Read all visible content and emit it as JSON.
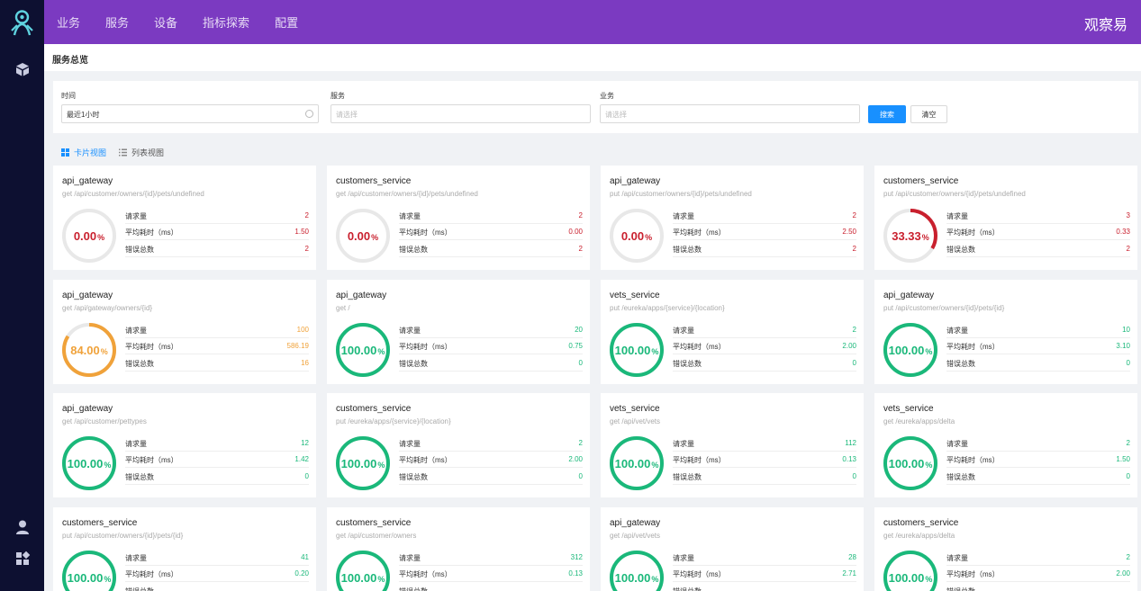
{
  "colors": {
    "topbar": "#7b3ac1",
    "sidebar": "#0d1031",
    "green": "#1ab87a",
    "red": "#c9202e",
    "orange": "#f0a23a",
    "primary": "#1890ff"
  },
  "topbar": {
    "menu": [
      "业务",
      "服务",
      "设备",
      "指标探索",
      "配置"
    ],
    "brand": "观察易"
  },
  "sidebar": {
    "icons": [
      "logo-icon",
      "cube-icon",
      "user-icon",
      "dashboard-icon"
    ]
  },
  "page": {
    "title": "服务总览"
  },
  "filter": {
    "time_label": "时间",
    "time_value": "最近1小时",
    "service_label": "服务",
    "service_placeholder": "请选择",
    "business_label": "业务",
    "business_placeholder": "请选择",
    "search_button": "搜索",
    "clear_button": "清空"
  },
  "view": {
    "card_view": "卡片视图",
    "list_view": "列表视图"
  },
  "metric_labels": {
    "requests": "请求量",
    "avg_latency": "平均耗时（ms）",
    "errors": "错误总数"
  },
  "cards": [
    {
      "service": "api_gateway",
      "endpoint": "get /api/customer/owners/{id}/pets/undefined",
      "percent": "0.00",
      "fraction": 0,
      "status": "red",
      "requests": "2",
      "latency": "1.50",
      "errors": "2"
    },
    {
      "service": "customers_service",
      "endpoint": "get /api/customer/owners/{id}/pets/undefined",
      "percent": "0.00",
      "fraction": 0,
      "status": "red",
      "requests": "2",
      "latency": "0.00",
      "errors": "2"
    },
    {
      "service": "api_gateway",
      "endpoint": "put /api/customer/owners/{id}/pets/undefined",
      "percent": "0.00",
      "fraction": 0,
      "status": "red",
      "requests": "2",
      "latency": "2.50",
      "errors": "2"
    },
    {
      "service": "customers_service",
      "endpoint": "put /api/customer/owners/{id}/pets/undefined",
      "percent": "33.33",
      "fraction": 0.3333,
      "status": "red",
      "requests": "3",
      "latency": "0.33",
      "errors": "2"
    },
    {
      "service": "api_gateway",
      "endpoint": "get /api/gateway/owners/{id}",
      "percent": "84.00",
      "fraction": 0.84,
      "status": "orange",
      "requests": "100",
      "latency": "586.19",
      "errors": "16"
    },
    {
      "service": "api_gateway",
      "endpoint": "get /",
      "percent": "100.00",
      "fraction": 1,
      "status": "green",
      "requests": "20",
      "latency": "0.75",
      "errors": "0"
    },
    {
      "service": "vets_service",
      "endpoint": "put /eureka/apps/{service}/{location}",
      "percent": "100.00",
      "fraction": 1,
      "status": "green",
      "requests": "2",
      "latency": "2.00",
      "errors": "0"
    },
    {
      "service": "api_gateway",
      "endpoint": "put /api/customer/owners/{id}/pets/{id}",
      "percent": "100.00",
      "fraction": 1,
      "status": "green",
      "requests": "10",
      "latency": "3.10",
      "errors": "0"
    },
    {
      "service": "api_gateway",
      "endpoint": "get /api/customer/pettypes",
      "percent": "100.00",
      "fraction": 1,
      "status": "green",
      "requests": "12",
      "latency": "1.42",
      "errors": "0"
    },
    {
      "service": "customers_service",
      "endpoint": "put /eureka/apps/{service}/{location}",
      "percent": "100.00",
      "fraction": 1,
      "status": "green",
      "requests": "2",
      "latency": "2.00",
      "errors": "0"
    },
    {
      "service": "vets_service",
      "endpoint": "get /api/vet/vets",
      "percent": "100.00",
      "fraction": 1,
      "status": "green",
      "requests": "112",
      "latency": "0.13",
      "errors": "0"
    },
    {
      "service": "vets_service",
      "endpoint": "get /eureka/apps/delta",
      "percent": "100.00",
      "fraction": 1,
      "status": "green",
      "requests": "2",
      "latency": "1.50",
      "errors": "0"
    },
    {
      "service": "customers_service",
      "endpoint": "put /api/customer/owners/{id}/pets/{id}",
      "percent": "100.00",
      "fraction": 1,
      "status": "green",
      "requests": "41",
      "latency": "0.20",
      "errors": ""
    },
    {
      "service": "customers_service",
      "endpoint": "get /api/customer/owners",
      "percent": "100.00",
      "fraction": 1,
      "status": "green",
      "requests": "312",
      "latency": "0.13",
      "errors": ""
    },
    {
      "service": "api_gateway",
      "endpoint": "get /api/vet/vets",
      "percent": "100.00",
      "fraction": 1,
      "status": "green",
      "requests": "28",
      "latency": "2.71",
      "errors": ""
    },
    {
      "service": "customers_service",
      "endpoint": "get /eureka/apps/delta",
      "percent": "100.00",
      "fraction": 1,
      "status": "green",
      "requests": "2",
      "latency": "2.00",
      "errors": ""
    }
  ]
}
